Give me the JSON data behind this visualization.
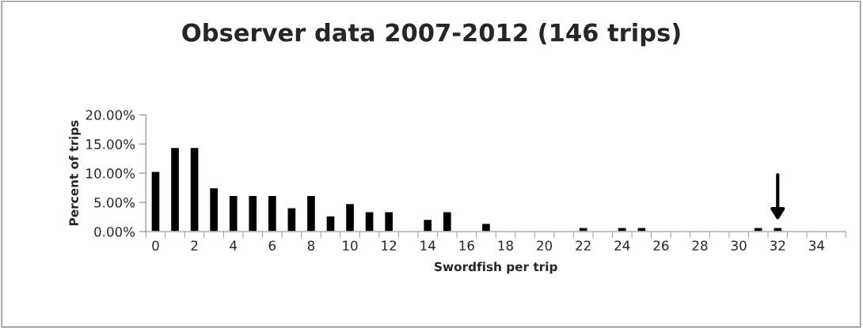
{
  "chart_data": {
    "type": "bar",
    "title": "Observer data 2007-2012 (146 trips)",
    "xlabel": "Swordfish per trip",
    "ylabel": "Percent of trips",
    "categories": [
      "0",
      null,
      "2",
      null,
      "4",
      null,
      "6",
      null,
      "8",
      null,
      "10",
      null,
      "12",
      null,
      "14",
      null,
      "16",
      null,
      "18",
      null,
      "20",
      null,
      "22",
      null,
      "24",
      null,
      "26",
      null,
      "28",
      null,
      "30",
      null,
      "32",
      null,
      "34",
      null
    ],
    "values": [
      10.3,
      14.4,
      14.4,
      7.5,
      6.2,
      6.2,
      6.2,
      4.1,
      6.2,
      2.7,
      4.8,
      3.4,
      3.4,
      null,
      2.1,
      3.4,
      null,
      1.4,
      null,
      null,
      null,
      null,
      0.7,
      null,
      0.7,
      0.7,
      null,
      null,
      null,
      null,
      null,
      0.7,
      0.7,
      null,
      null,
      null
    ],
    "color": "#000000",
    "ylim": [
      0,
      20
    ],
    "yticks": [
      {
        "value": 0,
        "label": "0.00%"
      },
      {
        "value": 5,
        "label": "5.00%"
      },
      {
        "value": 10,
        "label": "10.00%"
      },
      {
        "value": 15,
        "label": "15.00%"
      },
      {
        "value": 20,
        "label": "20.00%"
      }
    ],
    "grid": false
  }
}
